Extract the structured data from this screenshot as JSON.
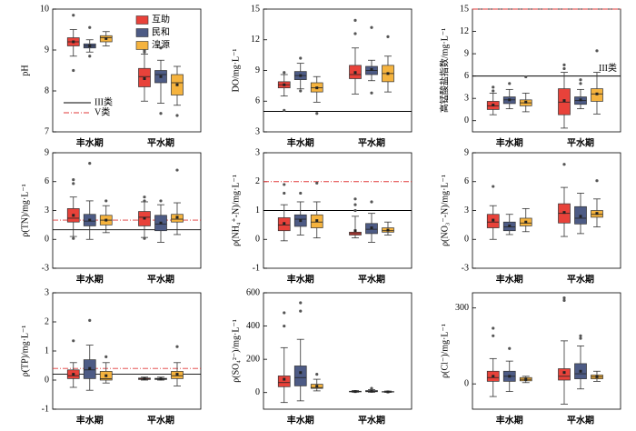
{
  "chart_data": [
    {
      "type": "box",
      "ylabel": "pH",
      "categories": [
        "丰水期",
        "平水期"
      ],
      "ylim": [
        7,
        10
      ],
      "yticks": [
        7,
        8,
        9,
        10
      ],
      "legend_lines": [
        {
          "name": "III类",
          "color": "#000000",
          "style": "solid"
        },
        {
          "name": "V类",
          "color": "#e03a3a",
          "style": "dashdot"
        }
      ],
      "ref_lines": [],
      "series": [
        {
          "name": "互助",
          "color": "#e8423a",
          "values": [
            {
              "lo": 8.85,
              "q1": 9.1,
              "med": 9.2,
              "q3": 9.3,
              "hi": 9.5,
              "mean": 9.2,
              "out": [
                8.5,
                9.85
              ]
            },
            {
              "lo": 7.75,
              "q1": 8.1,
              "med": 8.35,
              "q3": 8.55,
              "hi": 8.9,
              "mean": 8.3,
              "out": [
                9.0,
                8.95
              ]
            }
          ]
        },
        {
          "name": "民和",
          "color": "#4d5b85",
          "values": [
            {
              "lo": 8.95,
              "q1": 9.05,
              "med": 9.1,
              "q3": 9.15,
              "hi": 9.25,
              "mean": 9.1,
              "out": [
                9.55,
                8.85
              ]
            },
            {
              "lo": 7.7,
              "q1": 8.2,
              "med": 8.4,
              "q3": 8.5,
              "hi": 8.75,
              "mean": 8.35,
              "out": [
                7.45,
                9.05
              ]
            }
          ]
        },
        {
          "name": "湟源",
          "color": "#f5b33e",
          "values": [
            {
              "lo": 9.1,
              "q1": 9.2,
              "med": 9.3,
              "q3": 9.35,
              "hi": 9.45,
              "mean": 9.28,
              "out": []
            },
            {
              "lo": 7.65,
              "q1": 7.9,
              "med": 8.2,
              "q3": 8.4,
              "hi": 8.6,
              "mean": 8.15,
              "out": [
                7.4
              ]
            }
          ]
        }
      ]
    },
    {
      "type": "box",
      "ylabel": "DO/mg·L⁻¹",
      "categories": [
        "丰水期",
        "平水期"
      ],
      "ylim": [
        3,
        15
      ],
      "yticks": [
        3,
        6,
        9,
        12,
        15
      ],
      "ref_lines": [
        {
          "value": 5,
          "style": "solid"
        }
      ],
      "series": [
        {
          "color": "#e8423a",
          "values": [
            {
              "lo": 6.5,
              "q1": 7.3,
              "med": 7.6,
              "q3": 7.9,
              "hi": 8.6,
              "mean": 7.6,
              "out": [
                5.1,
                8.8
              ]
            },
            {
              "lo": 6.7,
              "q1": 8.2,
              "med": 8.6,
              "q3": 9.5,
              "hi": 11.2,
              "mean": 8.8,
              "out": [
                13.9,
                12.6
              ]
            }
          ]
        },
        {
          "color": "#4d5b85",
          "values": [
            {
              "lo": 7.2,
              "q1": 8.1,
              "med": 8.5,
              "q3": 8.9,
              "hi": 9.7,
              "mean": 8.5,
              "out": [
                10.2,
                7.0
              ]
            },
            {
              "lo": 8.0,
              "q1": 8.6,
              "med": 9.0,
              "q3": 9.4,
              "hi": 10.0,
              "mean": 9.1,
              "out": [
                13.2,
                6.8
              ]
            }
          ]
        },
        {
          "color": "#f5b33e",
          "values": [
            {
              "lo": 5.9,
              "q1": 6.9,
              "med": 7.3,
              "q3": 7.8,
              "hi": 8.4,
              "mean": 7.3,
              "out": [
                4.8
              ]
            },
            {
              "lo": 6.9,
              "q1": 7.9,
              "med": 8.7,
              "q3": 9.5,
              "hi": 10.4,
              "mean": 8.7,
              "out": [
                12.3
              ]
            }
          ]
        }
      ]
    },
    {
      "type": "box",
      "ylabel": "高锰酸盐指数/mg·L⁻¹",
      "categories": [
        "丰水期",
        "平水期"
      ],
      "ylim": [
        -1.5,
        15
      ],
      "yticks": [
        0,
        3,
        6,
        9,
        12,
        15
      ],
      "ref_lines": [
        {
          "value": 6,
          "style": "solid"
        },
        {
          "value": 15,
          "style": "dashdot"
        }
      ],
      "annotation": "III类",
      "series": [
        {
          "color": "#e8423a",
          "values": [
            {
              "lo": 0.8,
              "q1": 1.5,
              "med": 2.0,
              "q3": 2.6,
              "hi": 3.7,
              "mean": 2.1,
              "out": [
                4.5,
                4.0
              ]
            },
            {
              "lo": -1.0,
              "q1": 0.8,
              "med": 2.5,
              "q3": 4.3,
              "hi": 6.5,
              "mean": 2.7,
              "out": [
                7.5,
                7.0
              ]
            }
          ]
        },
        {
          "color": "#4d5b85",
          "values": [
            {
              "lo": 1.6,
              "q1": 2.3,
              "med": 2.8,
              "q3": 3.2,
              "hi": 4.2,
              "mean": 2.8,
              "out": [
                5.0
              ]
            },
            {
              "lo": 1.6,
              "q1": 2.2,
              "med": 2.7,
              "q3": 3.2,
              "hi": 4.2,
              "mean": 2.8,
              "out": [
                5.5,
                5.0
              ]
            }
          ]
        },
        {
          "color": "#f5b33e",
          "values": [
            {
              "lo": 1.2,
              "q1": 2.0,
              "med": 2.4,
              "q3": 2.8,
              "hi": 3.7,
              "mean": 2.5,
              "out": [
                5.9
              ]
            },
            {
              "lo": 0.9,
              "q1": 2.6,
              "med": 3.6,
              "q3": 4.3,
              "hi": 6.5,
              "mean": 3.6,
              "out": [
                9.4
              ]
            }
          ]
        }
      ]
    },
    {
      "type": "box",
      "ylabel": "ρ(TN)/mg·L⁻¹",
      "categories": [
        "丰水期",
        "平水期"
      ],
      "ylim": [
        -3,
        9
      ],
      "yticks": [
        -3,
        0,
        3,
        6,
        9
      ],
      "ref_lines": [
        {
          "value": 1,
          "style": "solid"
        },
        {
          "value": 2,
          "style": "dashdot"
        }
      ],
      "series": [
        {
          "color": "#e8423a",
          "values": [
            {
              "lo": 0.3,
              "q1": 1.8,
              "med": 2.2,
              "q3": 3.2,
              "hi": 4.4,
              "mean": 2.5,
              "out": [
                5.8,
                6.2,
                0.1
              ]
            },
            {
              "lo": 0.2,
              "q1": 1.4,
              "med": 2.3,
              "q3": 2.9,
              "hi": 3.9,
              "mean": 2.2,
              "out": [
                4.4,
                4.0,
                0.1
              ]
            }
          ]
        },
        {
          "color": "#4d5b85",
          "values": [
            {
              "lo": 0.0,
              "q1": 1.4,
              "med": 1.9,
              "q3": 2.6,
              "hi": 4.0,
              "mean": 2.0,
              "out": [
                7.9
              ]
            },
            {
              "lo": -0.3,
              "q1": 0.9,
              "med": 1.6,
              "q3": 2.5,
              "hi": 3.6,
              "mean": 1.7,
              "out": [
                4.0
              ]
            }
          ]
        },
        {
          "color": "#f5b33e",
          "values": [
            {
              "lo": 0.7,
              "q1": 1.5,
              "med": 2.0,
              "q3": 2.5,
              "hi": 3.5,
              "mean": 2.0,
              "out": [
                4.0
              ]
            },
            {
              "lo": 0.5,
              "q1": 1.8,
              "med": 2.1,
              "q3": 2.6,
              "hi": 3.8,
              "mean": 2.3,
              "out": [
                7.2
              ]
            }
          ]
        }
      ]
    },
    {
      "type": "box",
      "ylabel": "ρ(NH₄⁺-N)/mg·L⁻¹",
      "categories": [
        "丰水期",
        "平水期"
      ],
      "ylim": [
        -1,
        3
      ],
      "yticks": [
        -1,
        0,
        1,
        2,
        3
      ],
      "ref_lines": [
        {
          "value": 1,
          "style": "solid"
        },
        {
          "value": 2,
          "style": "dashdot"
        }
      ],
      "series": [
        {
          "color": "#e8423a",
          "values": [
            {
              "lo": -0.05,
              "q1": 0.3,
              "med": 0.5,
              "q3": 0.75,
              "hi": 1.2,
              "mean": 0.55,
              "out": [
                1.9,
                1.6
              ]
            },
            {
              "lo": 0.05,
              "q1": 0.15,
              "med": 0.2,
              "q3": 0.25,
              "hi": 0.8,
              "mean": 0.3,
              "out": [
                1.0,
                1.2,
                1.4
              ]
            }
          ]
        },
        {
          "color": "#4d5b85",
          "values": [
            {
              "lo": 0.15,
              "q1": 0.45,
              "med": 0.7,
              "q3": 0.85,
              "hi": 1.3,
              "mean": 0.65,
              "out": [
                1.6
              ]
            },
            {
              "lo": -0.1,
              "q1": 0.2,
              "med": 0.35,
              "q3": 0.55,
              "hi": 0.9,
              "mean": 0.4,
              "out": [
                1.3
              ]
            }
          ]
        },
        {
          "color": "#f5b33e",
          "values": [
            {
              "lo": 0.05,
              "q1": 0.4,
              "med": 0.6,
              "q3": 0.85,
              "hi": 1.3,
              "mean": 0.65,
              "out": [
                1.95
              ]
            },
            {
              "lo": 0.15,
              "q1": 0.25,
              "med": 0.3,
              "q3": 0.4,
              "hi": 0.6,
              "mean": 0.32,
              "out": []
            }
          ]
        }
      ]
    },
    {
      "type": "box",
      "ylabel": "ρ(NO₃⁻-N)/mg·L⁻¹",
      "categories": [
        "丰水期",
        "平水期"
      ],
      "ylim": [
        -3,
        9
      ],
      "yticks": [
        -3,
        0,
        3,
        6,
        9
      ],
      "ref_lines": [],
      "series": [
        {
          "color": "#e8423a",
          "values": [
            {
              "lo": 0.0,
              "q1": 1.2,
              "med": 1.8,
              "q3": 2.6,
              "hi": 3.5,
              "mean": 2.0,
              "out": [
                5.5
              ]
            },
            {
              "lo": 0.3,
              "q1": 1.7,
              "med": 2.7,
              "q3": 3.7,
              "hi": 5.4,
              "mean": 2.8,
              "out": [
                7.8
              ]
            }
          ]
        },
        {
          "color": "#4d5b85",
          "values": [
            {
              "lo": 0.5,
              "q1": 0.9,
              "med": 1.3,
              "q3": 1.8,
              "hi": 2.6,
              "mean": 1.4,
              "out": []
            },
            {
              "lo": 0.6,
              "q1": 1.6,
              "med": 2.2,
              "q3": 3.4,
              "hi": 4.8,
              "mean": 2.4,
              "out": []
            }
          ]
        },
        {
          "color": "#f5b33e",
          "values": [
            {
              "lo": 0.8,
              "q1": 1.4,
              "med": 1.7,
              "q3": 2.2,
              "hi": 3.2,
              "mean": 1.8,
              "out": []
            },
            {
              "lo": 1.3,
              "q1": 2.3,
              "med": 2.6,
              "q3": 3.0,
              "hi": 4.2,
              "mean": 2.7,
              "out": [
                6.1
              ]
            }
          ]
        }
      ]
    },
    {
      "type": "box",
      "ylabel": "ρ(TP)/mg·L⁻¹",
      "categories": [
        "丰水期",
        "平水期"
      ],
      "ylim": [
        -1,
        3
      ],
      "yticks": [
        -1,
        0,
        1,
        2,
        3
      ],
      "ref_lines": [
        {
          "value": 0.2,
          "style": "solid"
        },
        {
          "value": 0.4,
          "style": "dashdot"
        }
      ],
      "series": [
        {
          "color": "#e8423a",
          "values": [
            {
              "lo": -0.25,
              "q1": 0.05,
              "med": 0.15,
              "q3": 0.35,
              "hi": 0.6,
              "mean": 0.2,
              "out": [
                1.35
              ]
            },
            {
              "lo": 0.0,
              "q1": 0.02,
              "med": 0.05,
              "q3": 0.07,
              "hi": 0.1,
              "mean": 0.05,
              "out": []
            }
          ]
        },
        {
          "color": "#4d5b85",
          "values": [
            {
              "lo": -0.35,
              "q1": 0.05,
              "med": 0.35,
              "q3": 0.7,
              "hi": 1.2,
              "mean": 0.4,
              "out": [
                2.05
              ]
            },
            {
              "lo": 0.0,
              "q1": 0.02,
              "med": 0.04,
              "q3": 0.06,
              "hi": 0.1,
              "mean": 0.04,
              "out": []
            }
          ]
        },
        {
          "color": "#f5b33e",
          "values": [
            {
              "lo": -0.1,
              "q1": 0.0,
              "med": 0.05,
              "q3": 0.3,
              "hi": 0.6,
              "mean": 0.15,
              "out": [
                0.8
              ]
            },
            {
              "lo": -0.2,
              "q1": 0.05,
              "med": 0.15,
              "q3": 0.3,
              "hi": 0.6,
              "mean": 0.2,
              "out": [
                1.15
              ]
            }
          ]
        }
      ]
    },
    {
      "type": "box",
      "ylabel": "ρ(SO₄²⁻)/mg·L⁻¹",
      "categories": [
        "丰水期",
        "平水期"
      ],
      "ylim": [
        -100,
        600
      ],
      "yticks": [
        0,
        200,
        400,
        600
      ],
      "ref_lines": [],
      "series": [
        {
          "color": "#e8423a",
          "values": [
            {
              "lo": -60,
              "q1": 35,
              "med": 60,
              "q3": 100,
              "hi": 270,
              "mean": 80,
              "out": [
                480,
                400
              ]
            },
            {
              "lo": 2,
              "q1": 4,
              "med": 6,
              "q3": 8,
              "hi": 12,
              "mean": 6,
              "out": []
            }
          ]
        },
        {
          "color": "#4d5b85",
          "values": [
            {
              "lo": -50,
              "q1": 40,
              "med": 90,
              "q3": 160,
              "hi": 320,
              "mean": 120,
              "out": [
                540,
                490
              ]
            },
            {
              "lo": 2,
              "q1": 5,
              "med": 8,
              "q3": 12,
              "hi": 18,
              "mean": 8,
              "out": [
                25
              ]
            }
          ]
        },
        {
          "color": "#f5b33e",
          "values": [
            {
              "lo": 10,
              "q1": 25,
              "med": 30,
              "q3": 50,
              "hi": 80,
              "mean": 38,
              "out": [
                110
              ]
            },
            {
              "lo": 1,
              "q1": 3,
              "med": 4,
              "q3": 6,
              "hi": 9,
              "mean": 4,
              "out": []
            }
          ]
        }
      ]
    },
    {
      "type": "box",
      "ylabel": "ρ(Cl⁻)/mg·L⁻¹",
      "categories": [
        "丰水期",
        "平水期"
      ],
      "ylim": [
        -100,
        360
      ],
      "yticks": [
        0,
        300
      ],
      "ref_lines": [],
      "series": [
        {
          "color": "#e8423a",
          "values": [
            {
              "lo": -50,
              "q1": 10,
              "med": 25,
              "q3": 50,
              "hi": 100,
              "mean": 30,
              "out": [
                220,
                190
              ]
            },
            {
              "lo": -80,
              "q1": 15,
              "med": 30,
              "q3": 60,
              "hi": 170,
              "mean": 45,
              "out": [
                340,
                330
              ]
            }
          ]
        },
        {
          "color": "#4d5b85",
          "values": [
            {
              "lo": -30,
              "q1": 10,
              "med": 30,
              "q3": 50,
              "hi": 90,
              "mean": 30,
              "out": [
                140
              ]
            },
            {
              "lo": -20,
              "q1": 20,
              "med": 40,
              "q3": 80,
              "hi": 150,
              "mean": 50,
              "out": [
                190,
                180
              ]
            }
          ]
        },
        {
          "color": "#f5b33e",
          "values": [
            {
              "lo": 5,
              "q1": 12,
              "med": 18,
              "q3": 25,
              "hi": 30,
              "mean": 18,
              "out": []
            },
            {
              "lo": 10,
              "q1": 20,
              "med": 28,
              "q3": 35,
              "hi": 50,
              "mean": 28,
              "out": []
            }
          ]
        }
      ]
    }
  ]
}
